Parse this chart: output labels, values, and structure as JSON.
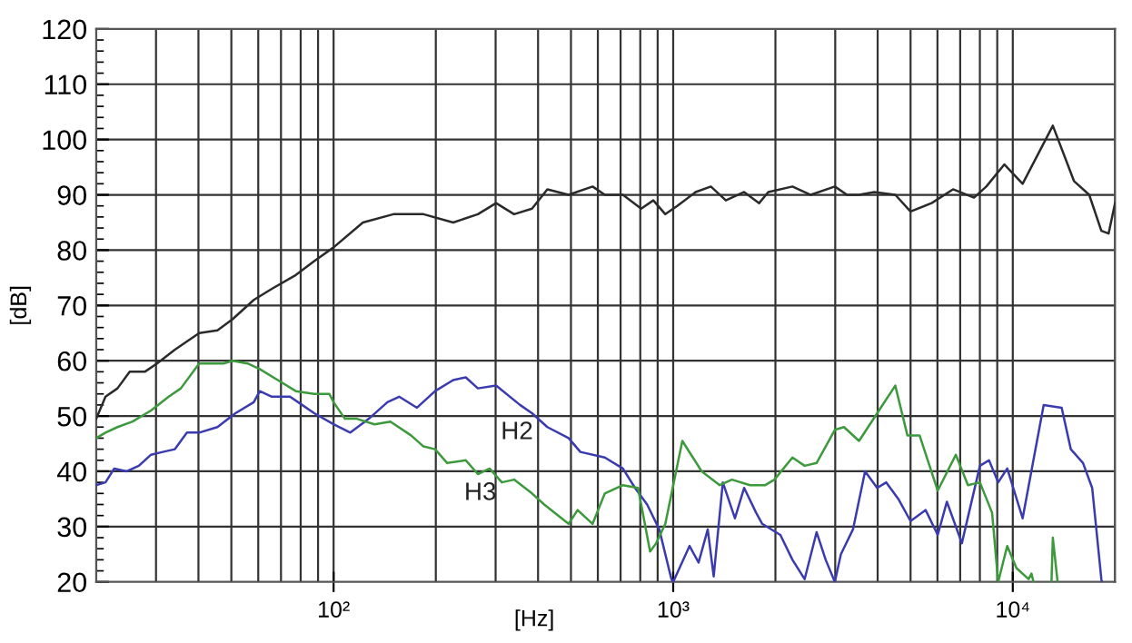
{
  "chart_data": {
    "type": "line",
    "xlabel": "[Hz]",
    "ylabel": "[dB]",
    "log": "x",
    "grid": true,
    "legend": false,
    "marker": "none",
    "line_style": "solid",
    "xlim": [
      20,
      20000
    ],
    "ylim": [
      20,
      120
    ],
    "xticks": [
      {
        "value": 100,
        "label": "10²"
      },
      {
        "value": 1000,
        "label": "10³"
      },
      {
        "value": 10000,
        "label": "10⁴"
      }
    ],
    "yticks": [
      20,
      30,
      40,
      50,
      60,
      70,
      80,
      90,
      100,
      110,
      120
    ],
    "series": [
      {
        "color": "#2a2a2a",
        "x": [
          20,
          21.3,
          23.1,
          25.1,
          27.8,
          30.2,
          34.1,
          40.2,
          45.5,
          50.4,
          58.2,
          65.8,
          77.4,
          87.7,
          100,
          122,
          150,
          184,
          225,
          266,
          301,
          340,
          384,
          426,
          492,
          579,
          629,
          711,
          805,
          874,
          948,
          1028,
          1164,
          1291,
          1429,
          1618,
          1791,
          1905,
          2245,
          2541,
          2992,
          3249,
          3526,
          3908,
          4508,
          4999,
          5768,
          6668,
          7691,
          8356,
          9446,
          10690,
          13120,
          15140,
          16790,
          18230,
          19150,
          20000
        ],
        "values": [
          49.5,
          53.5,
          55,
          58,
          58,
          59.5,
          62,
          65,
          65.5,
          67.5,
          71,
          73,
          75.5,
          78,
          80.5,
          85,
          86.5,
          86.5,
          85,
          86.5,
          88.5,
          86.5,
          87.5,
          91,
          90,
          91.5,
          90,
          90,
          87.5,
          89,
          86.5,
          88,
          90.5,
          91.5,
          89,
          90.5,
          88.5,
          90.5,
          91.5,
          90,
          91.5,
          90,
          90,
          90.5,
          90,
          87,
          88.5,
          91,
          89.5,
          91.5,
          95.5,
          92,
          102.5,
          92.5,
          90,
          83.5,
          83,
          88.5
        ]
      },
      {
        "name": "H2",
        "color": "#3b3bb0",
        "x": [
          20,
          21.3,
          22.6,
          24.6,
          26.7,
          29.0,
          31.4,
          34.1,
          37.0,
          40.2,
          45.5,
          51.4,
          58.2,
          60.6,
          65.8,
          74.4,
          80.8,
          87.7,
          100,
          112,
          127,
          144,
          156,
          176,
          199,
          225,
          245,
          266,
          301,
          354,
          384,
          426,
          492,
          533,
          629,
          711,
          772,
          838,
          910,
          988,
          1000,
          1117,
          1188,
          1264,
          1316,
          1400,
          1520,
          1618,
          1755,
          1829,
          2068,
          2245,
          2438,
          2644,
          2812,
          2992,
          3118,
          3384,
          3673,
          3987,
          4240,
          4603,
          4999,
          5538,
          6012,
          6397,
          7080,
          8002,
          8511,
          9057,
          9631,
          10690,
          12330,
          13930,
          14820,
          16100,
          17130,
          18230,
          18300
        ],
        "values": [
          37.5,
          38,
          40.5,
          40,
          41,
          43,
          43.5,
          44,
          47,
          47,
          48,
          50.5,
          52.5,
          54.5,
          53.5,
          53.5,
          52,
          50.5,
          48.5,
          47,
          49.5,
          52.5,
          53.5,
          51.5,
          54.5,
          56.5,
          57,
          55,
          55.5,
          52,
          50.5,
          48,
          46,
          43.5,
          42.5,
          40.5,
          37,
          34,
          29.5,
          20.5,
          20,
          26.5,
          23.5,
          29.5,
          21,
          38,
          31.5,
          37,
          32.5,
          30.5,
          28.5,
          24,
          20.5,
          29,
          24,
          20,
          25,
          29.5,
          40,
          37,
          38,
          35,
          31,
          33,
          28.5,
          34.5,
          27,
          41,
          42,
          38,
          40.5,
          31.5,
          52,
          51.5,
          44,
          41.5,
          37,
          20.5,
          20
        ]
      },
      {
        "name": "H3",
        "color": "#3c9a3c",
        "x": [
          20,
          21.3,
          23.1,
          25.6,
          29.0,
          32.7,
          35.5,
          40.2,
          43.6,
          47.4,
          50.4,
          55.8,
          60.6,
          68.5,
          77.4,
          87.7,
          97.2,
          100,
          108,
          117,
          132,
          147,
          169,
          184,
          199,
          216,
          245,
          266,
          288,
          313,
          340,
          384,
          417,
          492,
          523,
          579,
          629,
          711,
          788,
          855,
          891,
          948,
          1064,
          1213,
          1371,
          1489,
          1684,
          1867,
          1986,
          2245,
          2438,
          2644,
          2992,
          3184,
          3526,
          3987,
          4508,
          4895,
          5315,
          6012,
          6795,
          7379,
          8002,
          8690,
          9057,
          9631,
          10250,
          11130,
          11350,
          11510,
          12500,
          13000,
          13120,
          13550
        ],
        "values": [
          46,
          47,
          48,
          49,
          51,
          53.5,
          55,
          59.5,
          59.5,
          59.5,
          60,
          59.5,
          58.5,
          56.5,
          54.5,
          54,
          54,
          52.5,
          49.5,
          49.5,
          48.5,
          49,
          46.5,
          44.5,
          44,
          41.5,
          42,
          39.5,
          40.5,
          38,
          38.5,
          36,
          34,
          30.5,
          33,
          30.5,
          36,
          37.5,
          37,
          25.5,
          27,
          30.5,
          45.5,
          40,
          37.5,
          38.5,
          37.5,
          37.5,
          38.5,
          42.5,
          41,
          41.5,
          47.5,
          48,
          45.5,
          50.5,
          55.5,
          46.5,
          46.5,
          36.5,
          43,
          37.5,
          38,
          32.5,
          20,
          26.5,
          22.5,
          20.5,
          21.5,
          20,
          null,
          20,
          28,
          20
        ]
      }
    ]
  }
}
